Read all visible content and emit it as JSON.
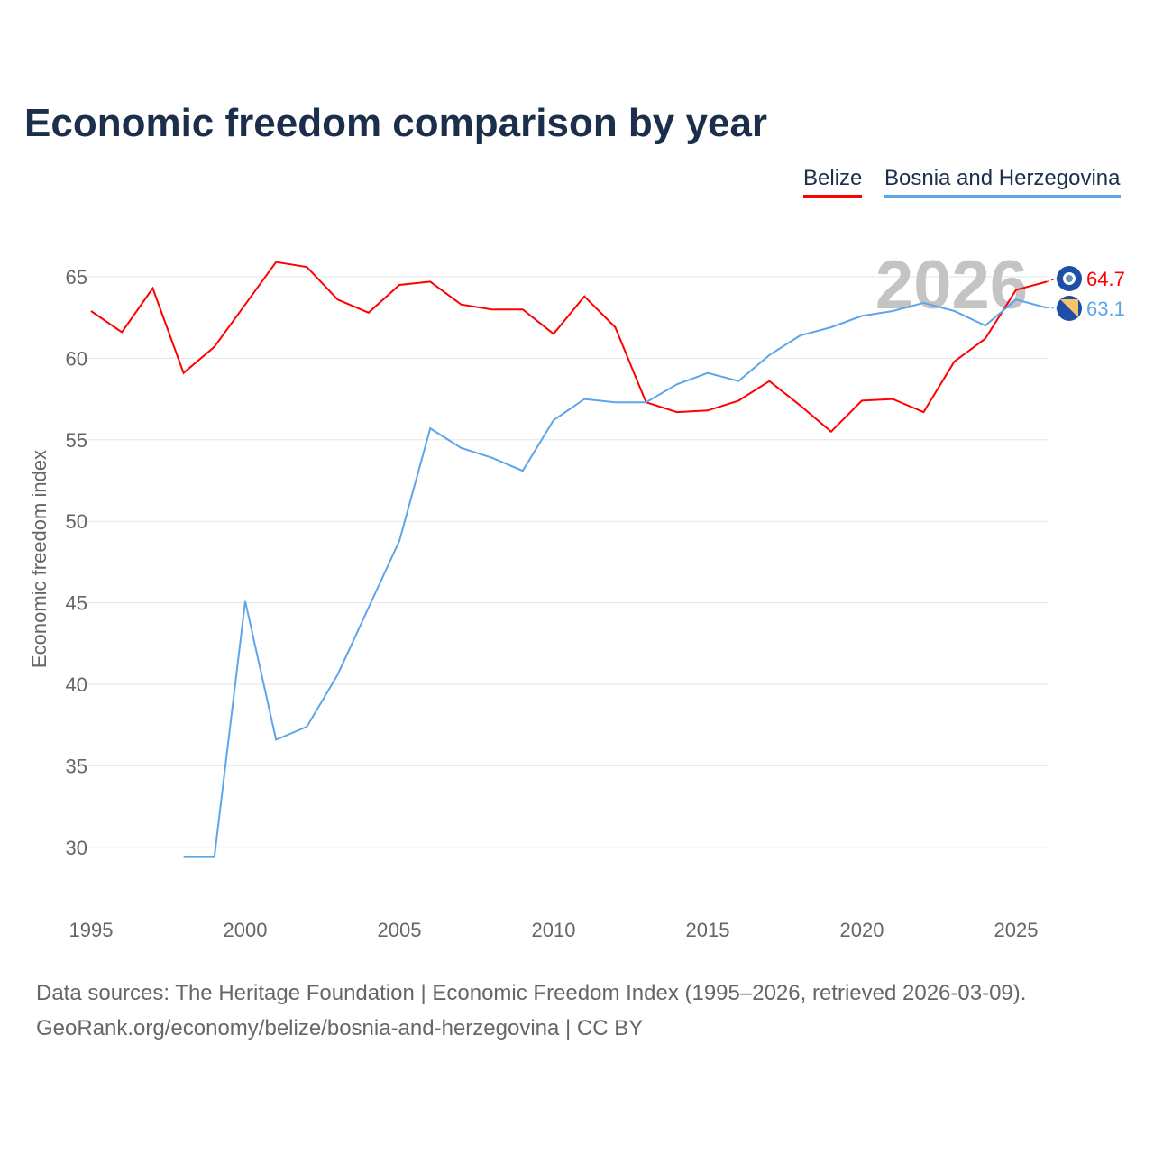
{
  "chart_data": {
    "type": "line",
    "title": "Economic freedom comparison by year",
    "ylabel": "Economic freedom index",
    "xlabel": "",
    "xlim": [
      1995,
      2026
    ],
    "ylim": [
      27,
      67
    ],
    "xticks": [
      1995,
      2000,
      2005,
      2010,
      2015,
      2020,
      2025
    ],
    "yticks": [
      30,
      35,
      40,
      45,
      50,
      55,
      60,
      65
    ],
    "grid": true,
    "legend_position": "top-right",
    "year_watermark": "2026",
    "series": [
      {
        "name": "Belize",
        "color": "#ff0000",
        "end_label": "64.7",
        "x": [
          1995,
          1996,
          1997,
          1998,
          1999,
          2000,
          2001,
          2002,
          2003,
          2004,
          2005,
          2006,
          2007,
          2008,
          2009,
          2010,
          2011,
          2012,
          2013,
          2014,
          2015,
          2016,
          2017,
          2018,
          2019,
          2020,
          2021,
          2022,
          2023,
          2024,
          2025,
          2026
        ],
        "values": [
          62.9,
          61.6,
          64.3,
          59.1,
          60.7,
          63.3,
          65.9,
          65.6,
          63.6,
          62.8,
          64.5,
          64.7,
          63.3,
          63.0,
          63.0,
          61.5,
          63.8,
          61.9,
          57.3,
          56.7,
          56.8,
          57.4,
          58.6,
          57.1,
          55.5,
          57.4,
          57.5,
          56.7,
          59.8,
          61.2,
          64.2,
          64.7
        ]
      },
      {
        "name": "Bosnia and Herzegovina",
        "color": "#5da5ea",
        "end_label": "63.1",
        "x": [
          1998,
          1999,
          2000,
          2001,
          2002,
          2003,
          2004,
          2005,
          2006,
          2007,
          2008,
          2009,
          2010,
          2011,
          2012,
          2013,
          2014,
          2015,
          2016,
          2017,
          2018,
          2019,
          2020,
          2021,
          2022,
          2023,
          2024,
          2025,
          2026
        ],
        "values": [
          29.4,
          29.4,
          45.1,
          36.6,
          37.4,
          40.6,
          44.7,
          48.8,
          55.7,
          54.5,
          53.9,
          53.1,
          56.2,
          57.5,
          57.3,
          57.3,
          58.4,
          59.1,
          58.6,
          60.2,
          61.4,
          61.9,
          62.6,
          62.9,
          63.4,
          62.9,
          62.0,
          63.6,
          63.1
        ]
      }
    ]
  },
  "footer": {
    "sources": "Data sources: The Heritage Foundation | Economic Freedom Index (1995–2026, retrieved 2026-03-09).",
    "credit": "GeoRank.org/economy/belize/bosnia-and-herzegovina | CC BY"
  }
}
